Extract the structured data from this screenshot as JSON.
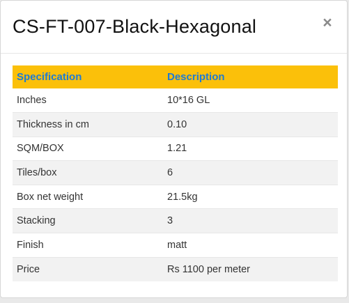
{
  "modal": {
    "title": "CS-FT-007-Black-Hexagonal",
    "close_label": "×"
  },
  "table": {
    "headers": [
      "Specification",
      "Description"
    ],
    "rows": [
      {
        "spec": "Inches",
        "desc": "10*16 GL"
      },
      {
        "spec": "Thickness in cm",
        "desc": "0.10"
      },
      {
        "spec": "SQM/BOX",
        "desc": "1.21"
      },
      {
        "spec": "Tiles/box",
        "desc": "6"
      },
      {
        "spec": "Box net weight",
        "desc": "21.5kg"
      },
      {
        "spec": "Stacking",
        "desc": "3"
      },
      {
        "spec": "Finish",
        "desc": "matt"
      },
      {
        "spec": "Price",
        "desc": "Rs 1100 per meter"
      }
    ]
  },
  "colors": {
    "header_bg": "#fbc00a",
    "header_text": "#1f7bd3",
    "stripe": "#f2f2f2"
  }
}
